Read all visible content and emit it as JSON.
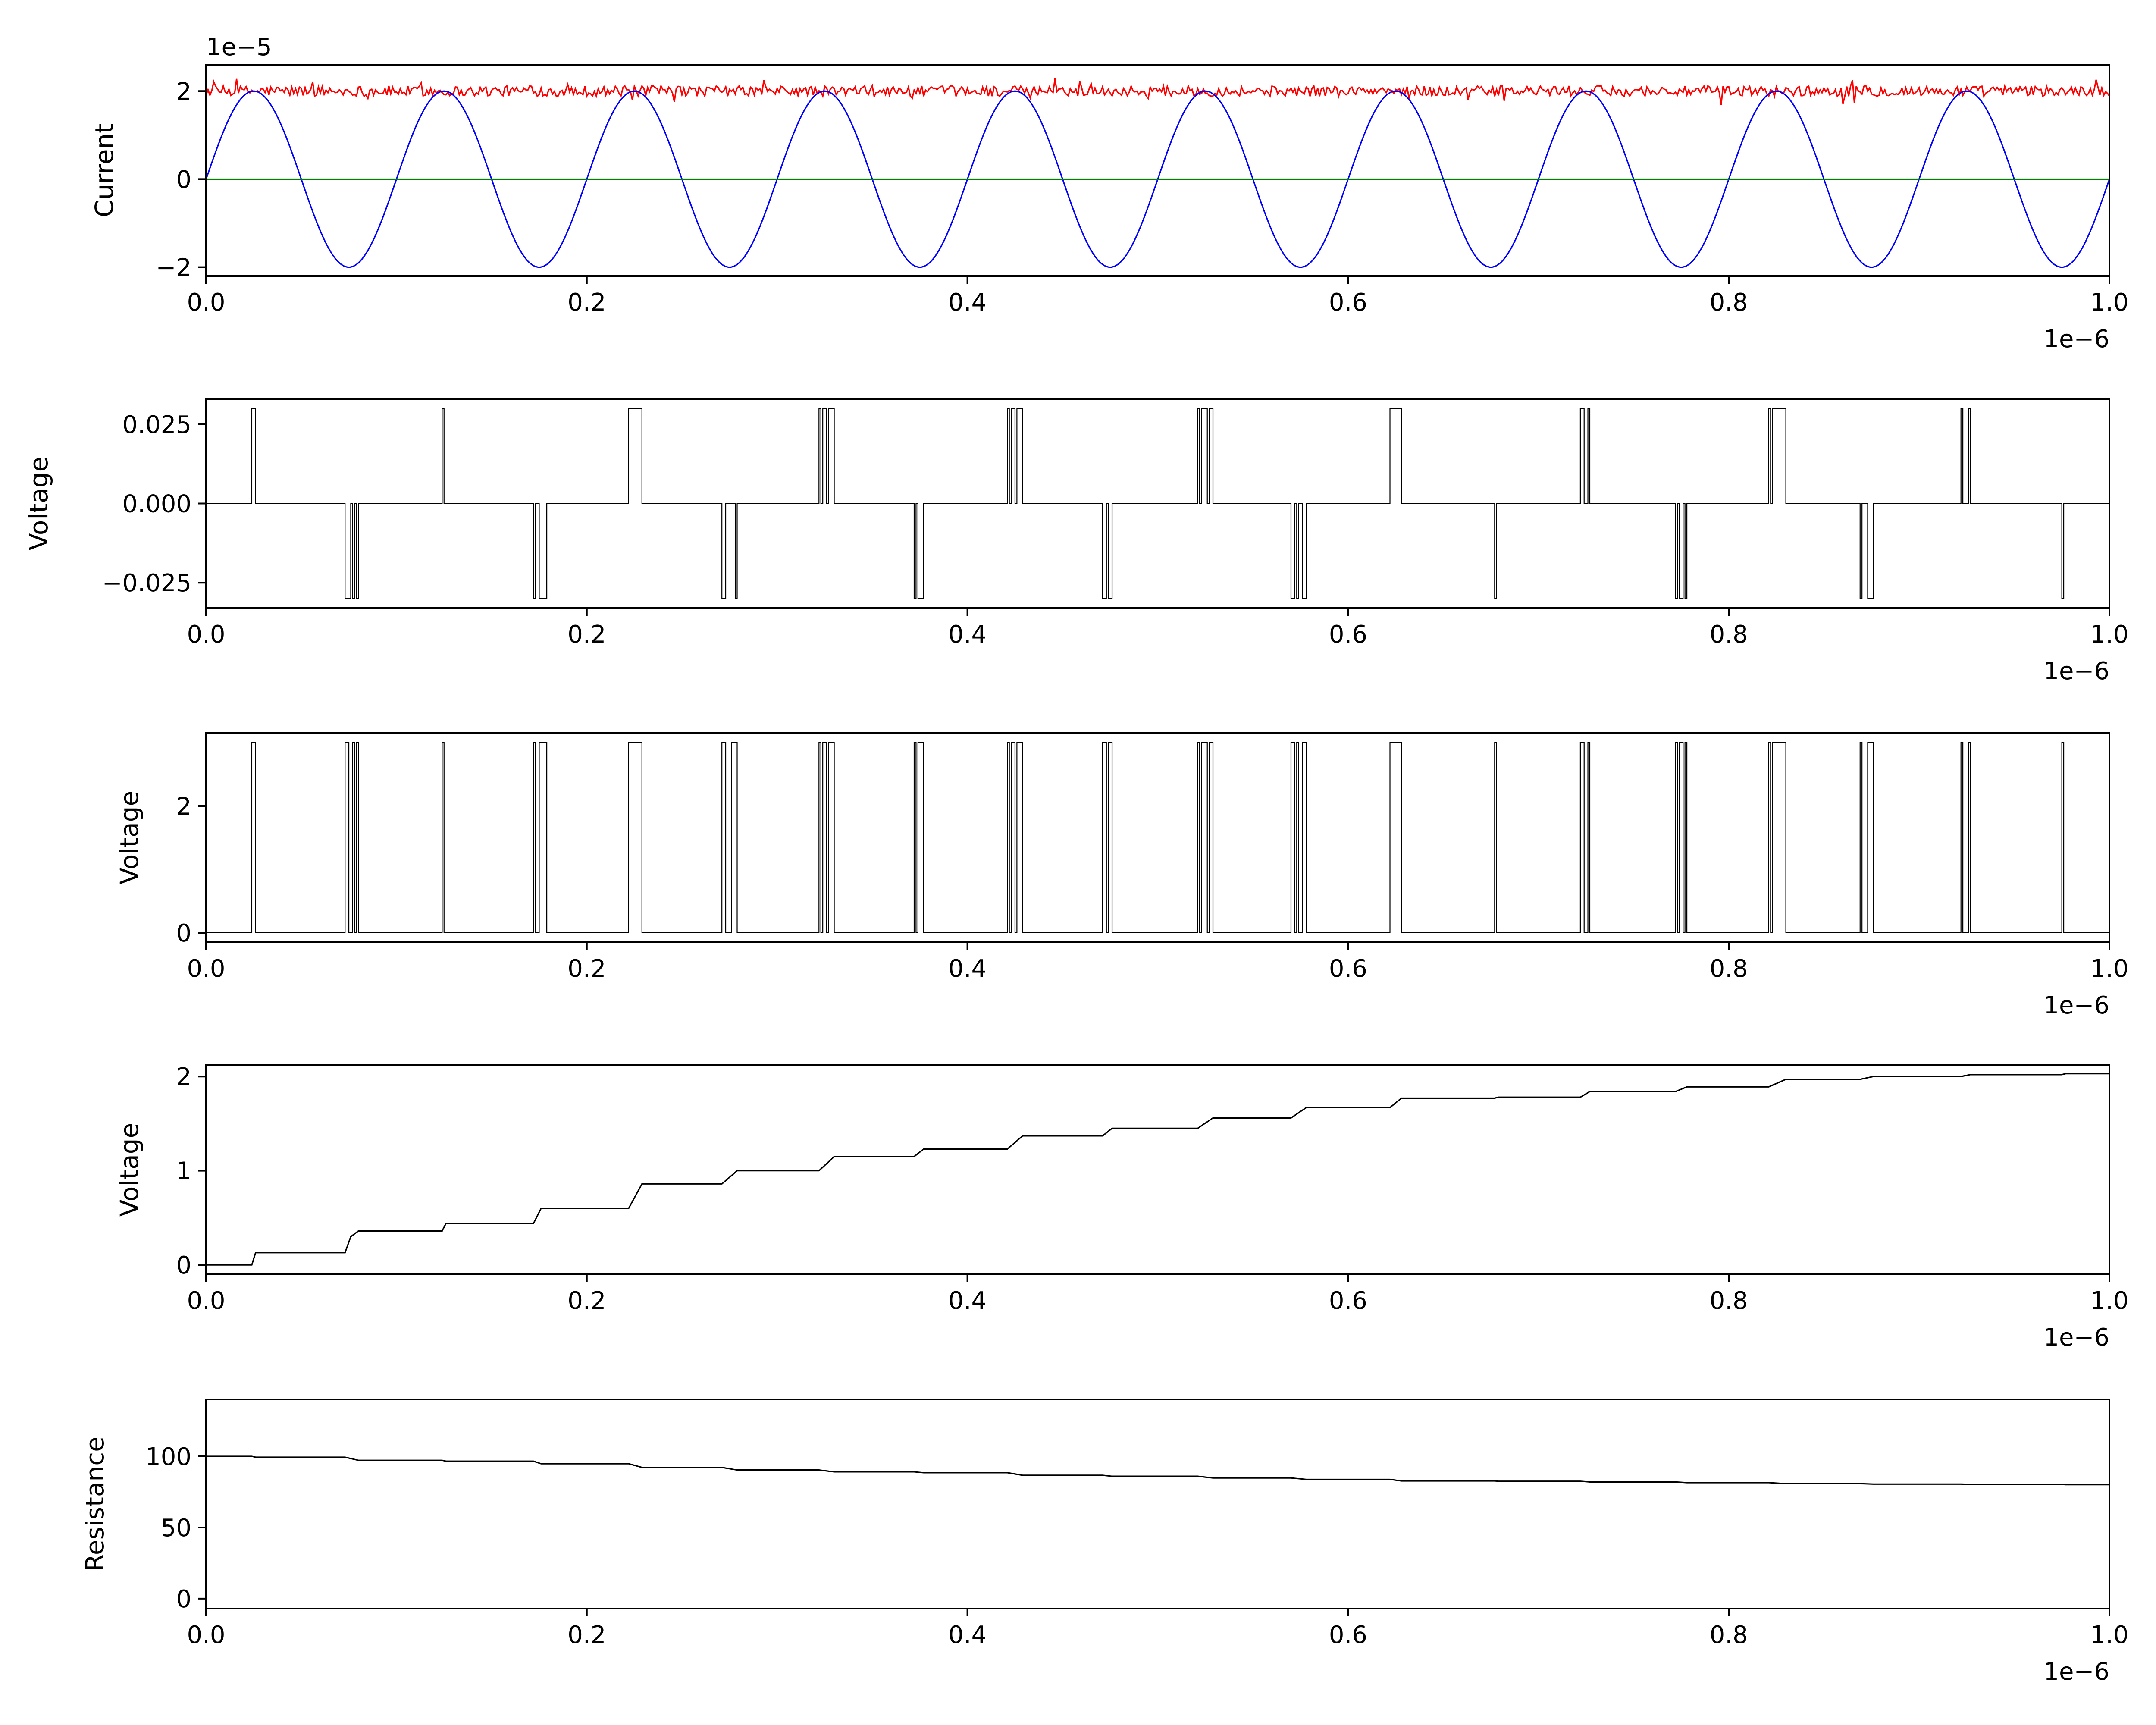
{
  "chart_data": [
    {
      "type": "line",
      "ylabel": "Current",
      "y_offset_label": "1e−5",
      "x_offset_label": "1e−6",
      "xlim": [
        0.0,
        1.0
      ],
      "ylim": [
        -2.2,
        2.6
      ],
      "xticks": [
        "0.0",
        "0.2",
        "0.4",
        "0.6",
        "0.8",
        "1.0"
      ],
      "yticks": [
        {
          "value": -2,
          "label": "−2"
        },
        {
          "value": 0,
          "label": "0"
        },
        {
          "value": 2,
          "label": "2"
        }
      ],
      "series": [
        {
          "color": "#ff0000",
          "form": "noisy-constant",
          "level": 2.0,
          "noise": 0.12,
          "x": [
            0.0,
            1.0
          ]
        },
        {
          "color": "#0000ff",
          "form": "sine",
          "amplitude": 2.0,
          "period": 0.1,
          "x": [
            0.0,
            1.0
          ]
        },
        {
          "color": "#008000",
          "form": "constant",
          "level": 0.0,
          "x": [
            0.0,
            1.0
          ]
        }
      ]
    },
    {
      "type": "line",
      "ylabel": "Voltage",
      "x_offset_label": "1e−6",
      "xlim": [
        0.0,
        1.0
      ],
      "ylim": [
        -0.033,
        0.033
      ],
      "xticks": [
        "0.0",
        "0.2",
        "0.4",
        "0.6",
        "0.8",
        "1.0"
      ],
      "yticks": [
        {
          "value": -0.025,
          "label": "−0.025"
        },
        {
          "value": 0.0,
          "label": "0.000"
        },
        {
          "value": 0.025,
          "label": "0.025"
        }
      ],
      "series": [
        {
          "color": "#000000",
          "form": "pulses",
          "amplitude": 0.03,
          "positive_pulses": [
            [
              0.024,
              0.026
            ],
            [
              0.124,
              0.125
            ],
            [
              0.222,
              0.229
            ],
            [
              0.322,
              0.323
            ],
            [
              0.324,
              0.326
            ],
            [
              0.327,
              0.33
            ],
            [
              0.421,
              0.422
            ],
            [
              0.423,
              0.425
            ],
            [
              0.426,
              0.429
            ],
            [
              0.521,
              0.522
            ],
            [
              0.523,
              0.526
            ],
            [
              0.527,
              0.529
            ],
            [
              0.622,
              0.628
            ],
            [
              0.722,
              0.724
            ],
            [
              0.726,
              0.727
            ],
            [
              0.821,
              0.822
            ],
            [
              0.823,
              0.83
            ],
            [
              0.922,
              0.923
            ],
            [
              0.926,
              0.927
            ]
          ],
          "negative_pulses": [
            [
              0.073,
              0.076
            ],
            [
              0.077,
              0.078
            ],
            [
              0.079,
              0.08
            ],
            [
              0.172,
              0.173
            ],
            [
              0.175,
              0.179
            ],
            [
              0.271,
              0.273
            ],
            [
              0.278,
              0.279
            ],
            [
              0.372,
              0.373
            ],
            [
              0.374,
              0.377
            ],
            [
              0.471,
              0.473
            ],
            [
              0.474,
              0.476
            ],
            [
              0.57,
              0.572
            ],
            [
              0.573,
              0.574
            ],
            [
              0.576,
              0.578
            ],
            [
              0.677,
              0.678
            ],
            [
              0.772,
              0.773
            ],
            [
              0.774,
              0.776
            ],
            [
              0.777,
              0.778
            ],
            [
              0.869,
              0.87
            ],
            [
              0.873,
              0.876
            ],
            [
              0.975,
              0.976
            ]
          ]
        }
      ]
    },
    {
      "type": "line",
      "ylabel": "Voltage",
      "x_offset_label": "1e−6",
      "xlim": [
        0.0,
        1.0
      ],
      "ylim": [
        -0.15,
        3.15
      ],
      "xticks": [
        "0.0",
        "0.2",
        "0.4",
        "0.6",
        "0.8",
        "1.0"
      ],
      "yticks": [
        {
          "value": 0,
          "label": "0"
        },
        {
          "value": 2,
          "label": "2"
        }
      ],
      "series": [
        {
          "color": "#000000",
          "form": "pulses",
          "amplitude": 3.0,
          "positive_pulses": [
            [
              0.024,
              0.026
            ],
            [
              0.073,
              0.075
            ],
            [
              0.077,
              0.078
            ],
            [
              0.079,
              0.08
            ],
            [
              0.124,
              0.125
            ],
            [
              0.172,
              0.173
            ],
            [
              0.175,
              0.179
            ],
            [
              0.222,
              0.229
            ],
            [
              0.271,
              0.273
            ],
            [
              0.276,
              0.279
            ],
            [
              0.322,
              0.323
            ],
            [
              0.324,
              0.326
            ],
            [
              0.327,
              0.33
            ],
            [
              0.372,
              0.373
            ],
            [
              0.374,
              0.377
            ],
            [
              0.421,
              0.422
            ],
            [
              0.423,
              0.425
            ],
            [
              0.426,
              0.429
            ],
            [
              0.471,
              0.473
            ],
            [
              0.474,
              0.476
            ],
            [
              0.521,
              0.522
            ],
            [
              0.523,
              0.526
            ],
            [
              0.527,
              0.529
            ],
            [
              0.57,
              0.572
            ],
            [
              0.573,
              0.574
            ],
            [
              0.576,
              0.578
            ],
            [
              0.622,
              0.628
            ],
            [
              0.677,
              0.678
            ],
            [
              0.722,
              0.724
            ],
            [
              0.726,
              0.727
            ],
            [
              0.772,
              0.773
            ],
            [
              0.774,
              0.776
            ],
            [
              0.777,
              0.778
            ],
            [
              0.821,
              0.822
            ],
            [
              0.823,
              0.83
            ],
            [
              0.869,
              0.87
            ],
            [
              0.873,
              0.876
            ],
            [
              0.922,
              0.923
            ],
            [
              0.926,
              0.927
            ],
            [
              0.975,
              0.976
            ]
          ],
          "negative_pulses": []
        }
      ]
    },
    {
      "type": "line",
      "ylabel": "Voltage",
      "x_offset_label": "1e−6",
      "xlim": [
        0.0,
        1.0
      ],
      "ylim": [
        -0.1,
        2.12
      ],
      "xticks": [
        "0.0",
        "0.2",
        "0.4",
        "0.6",
        "0.8",
        "1.0"
      ],
      "yticks": [
        {
          "value": 0,
          "label": "0"
        },
        {
          "value": 1,
          "label": "1"
        },
        {
          "value": 2,
          "label": "2"
        }
      ],
      "series": [
        {
          "color": "#000000",
          "form": "step",
          "x": [
            0.0,
            0.024,
            0.026,
            0.073,
            0.076,
            0.08,
            0.124,
            0.126,
            0.172,
            0.176,
            0.222,
            0.229,
            0.271,
            0.279,
            0.322,
            0.33,
            0.372,
            0.377,
            0.421,
            0.429,
            0.471,
            0.476,
            0.521,
            0.529,
            0.57,
            0.578,
            0.622,
            0.628,
            0.677,
            0.679,
            0.722,
            0.727,
            0.772,
            0.778,
            0.821,
            0.83,
            0.869,
            0.876,
            0.922,
            0.927,
            0.975,
            0.977,
            1.0
          ],
          "y": [
            0.0,
            0.0,
            0.13,
            0.13,
            0.3,
            0.36,
            0.36,
            0.44,
            0.44,
            0.6,
            0.6,
            0.86,
            0.86,
            1.0,
            1.0,
            1.15,
            1.15,
            1.23,
            1.23,
            1.37,
            1.37,
            1.45,
            1.45,
            1.56,
            1.56,
            1.67,
            1.67,
            1.77,
            1.77,
            1.78,
            1.78,
            1.84,
            1.84,
            1.89,
            1.89,
            1.97,
            1.97,
            2.0,
            2.0,
            2.02,
            2.02,
            2.03,
            2.03
          ]
        }
      ]
    },
    {
      "type": "line",
      "ylabel": "Resistance",
      "x_offset_label": "1e−6",
      "xlim": [
        0.0,
        1.0
      ],
      "ylim": [
        -7,
        140
      ],
      "xticks": [
        "0.0",
        "0.2",
        "0.4",
        "0.6",
        "0.8",
        "1.0"
      ],
      "yticks": [
        {
          "value": 0,
          "label": "0"
        },
        {
          "value": 50,
          "label": "50"
        },
        {
          "value": 100,
          "label": "100"
        }
      ],
      "series": [
        {
          "color": "#000000",
          "form": "step",
          "x": [
            0.0,
            0.024,
            0.026,
            0.073,
            0.08,
            0.124,
            0.126,
            0.172,
            0.176,
            0.222,
            0.229,
            0.271,
            0.279,
            0.322,
            0.33,
            0.372,
            0.377,
            0.421,
            0.429,
            0.471,
            0.476,
            0.521,
            0.529,
            0.57,
            0.578,
            0.622,
            0.628,
            0.677,
            0.679,
            0.722,
            0.727,
            0.772,
            0.778,
            0.821,
            0.83,
            0.869,
            0.876,
            0.922,
            0.927,
            0.975,
            0.977,
            1.0
          ],
          "y": [
            100,
            100,
            99.4,
            99.4,
            97.2,
            97.2,
            96.6,
            96.6,
            94.8,
            94.8,
            92.2,
            92.2,
            90.4,
            90.4,
            89.1,
            89.1,
            88.5,
            88.5,
            86.7,
            86.7,
            86.0,
            86.0,
            84.8,
            84.8,
            83.8,
            83.8,
            82.7,
            82.7,
            82.5,
            82.5,
            82.0,
            82.0,
            81.5,
            81.5,
            80.8,
            80.8,
            80.5,
            80.5,
            80.3,
            80.3,
            80.1,
            80.1
          ]
        }
      ]
    }
  ]
}
